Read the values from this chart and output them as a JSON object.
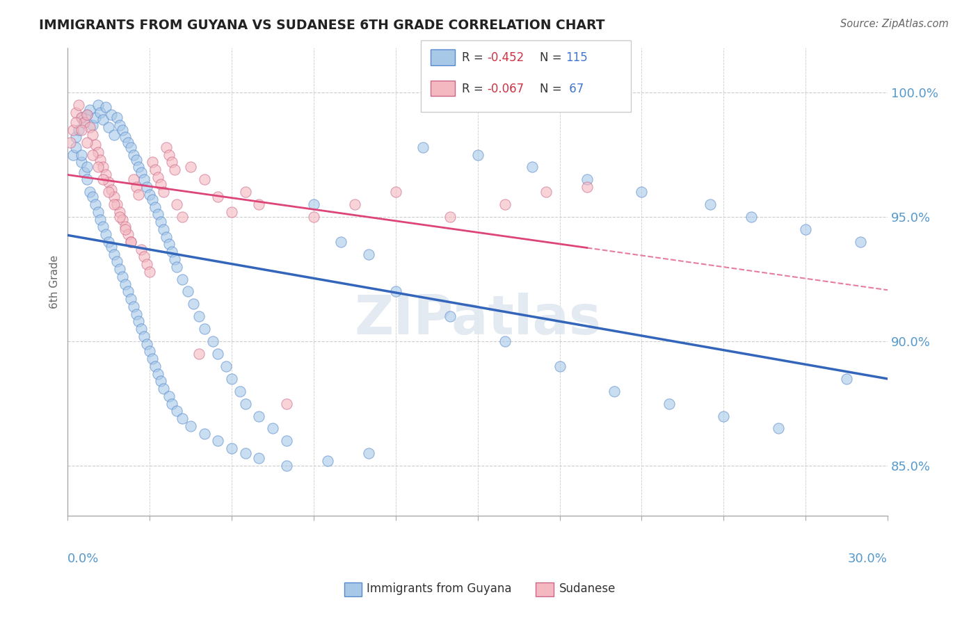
{
  "title": "IMMIGRANTS FROM GUYANA VS SUDANESE 6TH GRADE CORRELATION CHART",
  "source": "Source: ZipAtlas.com",
  "ylabel": "6th Grade",
  "ytick_values": [
    85.0,
    90.0,
    95.0,
    100.0
  ],
  "xmin": 0.0,
  "xmax": 30.0,
  "ymin": 83.0,
  "ymax": 101.8,
  "blue_color": "#a8c8e8",
  "pink_color": "#f4b8c0",
  "blue_edge_color": "#5588cc",
  "pink_edge_color": "#cc6688",
  "blue_line_color": "#3366bb",
  "pink_line_color": "#dd4477",
  "r_color": "#cc3344",
  "n_color": "#4477cc",
  "background_color": "#ffffff",
  "grid_color": "#cccccc",
  "watermark": "ZIPatlas",
  "blue_scatter_x": [
    0.2,
    0.3,
    0.4,
    0.5,
    0.6,
    0.7,
    0.8,
    0.9,
    1.0,
    1.1,
    1.2,
    1.3,
    1.4,
    1.5,
    1.6,
    1.7,
    1.8,
    1.9,
    2.0,
    2.1,
    2.2,
    2.3,
    2.4,
    2.5,
    2.6,
    2.7,
    2.8,
    2.9,
    3.0,
    3.1,
    3.2,
    3.3,
    3.4,
    3.5,
    3.6,
    3.7,
    3.8,
    3.9,
    4.0,
    4.2,
    4.4,
    4.6,
    4.8,
    5.0,
    5.3,
    5.5,
    5.8,
    6.0,
    6.3,
    6.5,
    7.0,
    7.5,
    8.0,
    9.0,
    10.0,
    11.0,
    12.0,
    14.0,
    16.0,
    18.0,
    20.0,
    22.0,
    24.0,
    26.0,
    28.5,
    0.5,
    0.6,
    0.7,
    0.8,
    0.9,
    1.0,
    1.1,
    1.2,
    1.3,
    1.4,
    1.5,
    1.6,
    1.7,
    1.8,
    1.9,
    2.0,
    2.1,
    2.2,
    2.3,
    2.4,
    2.5,
    2.6,
    2.7,
    2.8,
    2.9,
    3.0,
    3.1,
    3.2,
    3.3,
    3.4,
    3.5,
    3.7,
    3.8,
    4.0,
    4.2,
    4.5,
    5.0,
    5.5,
    6.0,
    6.5,
    7.0,
    8.0,
    9.5,
    11.0,
    13.0,
    15.0,
    17.0,
    19.0,
    21.0,
    23.5,
    25.0,
    27.0,
    29.0,
    0.3,
    0.5,
    0.7
  ],
  "blue_scatter_y": [
    97.5,
    98.2,
    98.5,
    99.0,
    98.8,
    99.1,
    99.3,
    98.7,
    99.0,
    99.5,
    99.2,
    98.9,
    99.4,
    98.6,
    99.1,
    98.3,
    99.0,
    98.7,
    98.5,
    98.2,
    98.0,
    97.8,
    97.5,
    97.3,
    97.0,
    96.8,
    96.5,
    96.2,
    95.9,
    95.7,
    95.4,
    95.1,
    94.8,
    94.5,
    94.2,
    93.9,
    93.6,
    93.3,
    93.0,
    92.5,
    92.0,
    91.5,
    91.0,
    90.5,
    90.0,
    89.5,
    89.0,
    88.5,
    88.0,
    87.5,
    87.0,
    86.5,
    86.0,
    95.5,
    94.0,
    93.5,
    92.0,
    91.0,
    90.0,
    89.0,
    88.0,
    87.5,
    87.0,
    86.5,
    88.5,
    97.2,
    96.8,
    96.5,
    96.0,
    95.8,
    95.5,
    95.2,
    94.9,
    94.6,
    94.3,
    94.0,
    93.8,
    93.5,
    93.2,
    92.9,
    92.6,
    92.3,
    92.0,
    91.7,
    91.4,
    91.1,
    90.8,
    90.5,
    90.2,
    89.9,
    89.6,
    89.3,
    89.0,
    88.7,
    88.4,
    88.1,
    87.8,
    87.5,
    87.2,
    86.9,
    86.6,
    86.3,
    86.0,
    85.7,
    85.5,
    85.3,
    85.0,
    85.2,
    85.5,
    97.8,
    97.5,
    97.0,
    96.5,
    96.0,
    95.5,
    95.0,
    94.5,
    94.0,
    97.8,
    97.5,
    97.0
  ],
  "pink_scatter_x": [
    0.1,
    0.2,
    0.3,
    0.4,
    0.5,
    0.6,
    0.7,
    0.8,
    0.9,
    1.0,
    1.1,
    1.2,
    1.3,
    1.4,
    1.5,
    1.6,
    1.7,
    1.8,
    1.9,
    2.0,
    2.1,
    2.2,
    2.3,
    2.4,
    2.5,
    2.6,
    2.7,
    2.8,
    2.9,
    3.0,
    3.1,
    3.2,
    3.3,
    3.4,
    3.5,
    3.6,
    3.7,
    3.8,
    3.9,
    4.0,
    4.2,
    4.5,
    4.8,
    5.0,
    5.5,
    6.0,
    6.5,
    7.0,
    8.0,
    9.0,
    10.5,
    12.0,
    14.0,
    16.0,
    17.5,
    19.0,
    0.3,
    0.5,
    0.7,
    0.9,
    1.1,
    1.3,
    1.5,
    1.7,
    1.9,
    2.1,
    2.3
  ],
  "pink_scatter_y": [
    98.0,
    98.5,
    99.2,
    99.5,
    99.0,
    98.8,
    99.1,
    98.6,
    98.3,
    97.9,
    97.6,
    97.3,
    97.0,
    96.7,
    96.4,
    96.1,
    95.8,
    95.5,
    95.2,
    94.9,
    94.6,
    94.3,
    94.0,
    96.5,
    96.2,
    95.9,
    93.7,
    93.4,
    93.1,
    92.8,
    97.2,
    96.9,
    96.6,
    96.3,
    96.0,
    97.8,
    97.5,
    97.2,
    96.9,
    95.5,
    95.0,
    97.0,
    89.5,
    96.5,
    95.8,
    95.2,
    96.0,
    95.5,
    87.5,
    95.0,
    95.5,
    96.0,
    95.0,
    95.5,
    96.0,
    96.2,
    98.8,
    98.5,
    98.0,
    97.5,
    97.0,
    96.5,
    96.0,
    95.5,
    95.0,
    94.5,
    94.0
  ]
}
